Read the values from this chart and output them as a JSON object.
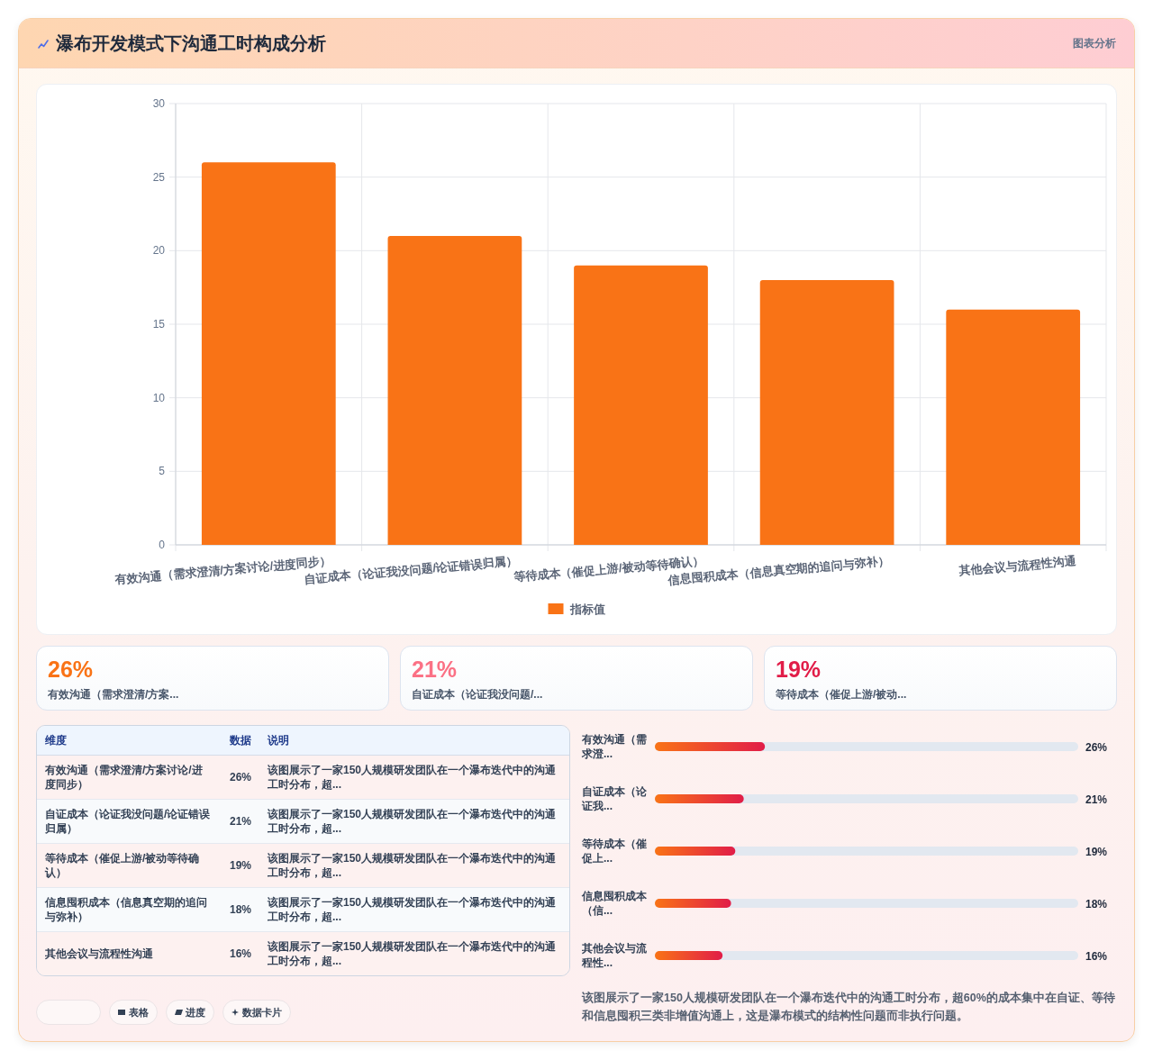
{
  "chart_data": [
    {
      "type": "bar",
      "title": "瀑布开发模式下沟通工时构成分析",
      "subtitle": "图表分析",
      "categories": [
        "有效沟通（需求澄清/方案讨论/进度同步）",
        "自证成本（论证我没问题/论证错误归属）",
        "等待成本（催促上游/被动等待确认）",
        "信息囤积成本（信息真空期的追问与弥补）",
        "其他会议与流程性沟通"
      ],
      "series": [
        {
          "name": "指标值",
          "color": "#f97316",
          "values": [
            26,
            21,
            19,
            18,
            16
          ]
        }
      ],
      "ylim": [
        0,
        30
      ],
      "yticks": [
        0,
        5,
        10,
        15,
        20,
        25,
        30
      ],
      "grid": true,
      "legend": "bottom"
    },
    {
      "type": "other",
      "categories": [
        "有效沟通（需求澄清/方案...",
        "自证成本（论证我没问题/...",
        "等待成本（催促上游/被动..."
      ],
      "value_labels": [
        "26%",
        "21%",
        "19%"
      ]
    },
    {
      "type": "other",
      "categories": [
        "有效沟通（需求澄清/方案讨论/进度同步）",
        "自证成本（论证我没问题/论证错误归属）",
        "等待成本（催促上游/被动等待确认）",
        "信息囤积成本（信息真空期的追问与弥补）",
        "其他会议与流程性沟通"
      ],
      "value_labels": [
        "26%",
        "21%",
        "19%",
        "18%",
        "16%"
      ],
      "annotations": [
        "维度",
        "数据",
        "说明",
        "该图展示了一家150人规模研发团队在一个瀑布迭代中的沟通工时分布，超...",
        "该图展示了一家150人规模研发团队在一个瀑布迭代中的沟通工时分布，超...",
        "该图展示了一家150人规模研发团队在一个瀑布迭代中的沟通工时分布，超...",
        "该图展示了一家150人规模研发团队在一个瀑布迭代中的沟通工时分布，超...",
        "该图展示了一家150人规模研发团队在一个瀑布迭代中的沟通工时分布，超..."
      ]
    },
    {
      "type": "bar",
      "orientation": "horizontal",
      "categories": [
        "有效沟通（需求澄...",
        "自证成本（论证我...",
        "等待成本（催促上...",
        "信息囤积成本（信...",
        "其他会议与流程性..."
      ],
      "values": [
        26,
        21,
        19,
        18,
        16
      ],
      "value_labels": [
        "26%",
        "21%",
        "19%",
        "18%",
        "16%"
      ],
      "color": "#f97316",
      "xlim": [
        0,
        100
      ],
      "tick_labels": "y",
      "annotations": [
        "该图展示了一家150人规模研发团队在一个瀑布迭代中的沟通工时分布，超60%的成本集中在自证、等待和信息囤积三类非增值沟通上，这是瀑布模式的结构性问题而非执行问题。"
      ]
    },
    {
      "type": "other",
      "categories": [
        null,
        "表格",
        "进度",
        "数据卡片"
      ]
    }
  ]
}
